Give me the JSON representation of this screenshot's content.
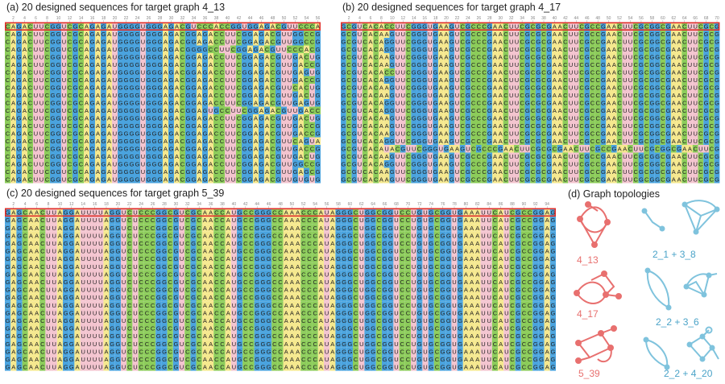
{
  "panels": [
    {
      "id": "a",
      "title": "(a) 20 designed sequences for target graph 4_13",
      "rows": [
        "CAGACUUCGGUCGCAGAGAUGGGGUGGGAGACGUCCCACCGGUGGAGACGUUCCCACG",
        "CAGACUUCGGUCGCAGAGAUGGGGUGGGAGACGGAGACCUUCGGAGACGUUGGCCG",
        "CAGACUUCGGUCGCAGAGAUGGGGUGGGAGACGGAGACCUUCGGAGACGUUGGCCG",
        "CAGACUUCGGUCGCAGAGAUGGGGUGGGAGACGGGGCCUUCGGAGACGUUCCCACG",
        "CAGACUUCGGUCGCAGAGAUGGGGUGGGAGACGGAGACCUUCGGAGACGUUGACUG",
        "CAGACUUCGGUCGCAGAGAUGGGGUGGGAGACGGAGACCUUCGGAGACGUUGACCG",
        "CAGACUUCGGUCGCAGAGAUGGGGUGGGAGACGGAGACCUUCGGAGACGUUGAGUG",
        "CAGACUUCGGUCGCAGAGAUGGGGUGGGAGACGGAGACCUUCGGAGACGUUGACCG",
        "CAGACUUCGGUCGCAGAGAUGGGGUGGGAGACGGAGACCUUCGGAGACGUUCACUG",
        "CAGACUUCGGUCGCAGAGAUGGGGUGGGAGACGGAGACCUUCGGAGACGUUGACUG",
        "CAGACUUCGGUCGCAGAGAUGGGGUGGGAGACGGAGACCUUCGGAGACGUUGAGUG",
        "CAGACUUCGGUCGCAGAGAUGGGGUGGGAGACGGAGUGCCUUCGGAGACGUUGACCG",
        "CAGACUUCGGUCGCAGAGAUGGGGUGGGAGACGGAGACCUUCGGAGACGUUGACUG",
        "CAGACUUCGGUCGCAGAGAUGGGGUGGGAGACGGAGACCUUCGGAGACGUUGACCG",
        "CAGACUUCGGUCGCAGAGAUGGGGUGGGAGACGGAGACCUUCGGAGACGUUGACCG",
        "CAGACUUCGGUCGCAGAGAUGGGGUGGGAGACGGAGACCUUCGGAGACGUUCAGUA",
        "CAGACUUCGGUCGCAGAGAUGGGGUGGGAGACGGAGACCUUCGGAGACGUUGACCG",
        "CAGACUUCGGUCGCAGAGAUGGGGUGGGAGACGGAGACCUUCGGAGACGUUGACUG",
        "CAGACUUCGGUCGCAGAGAUGGGGUGGGAGACGGAGACCUUCGGAGACGUUGGCCG",
        "CAGACUUCGGUCGCAGAGAUGGGGUGGGAGACGGAGACCUUCGGAGACGUUGAGCG",
        "CAGACUUCGGUCGCAGAGAUGGGGUGGGAGACGGAGACCUUCGGAGACGUUGUGUG"
      ]
    },
    {
      "id": "b",
      "title": "(b) 20 designed sequences for target graph 4_17",
      "rows": [
        "GCGUCACACCUUCGGGUGAAGUCGCCCGAACUUCGCGCGAACUUCGCCGAACUUCGCGGCGAACUUCGCG",
        "GCGUCACAAGUUCGGGUGAAGUCGCCCGAACUUCGCGCGAACUUCGCCGAACUUCGCGGCGAACUUCGCG",
        "GCGUCACAGGUUCGGGUGAAGUCGCCCGAACUUCGCGCGAACUUCGCCGAACUUCGCGGCGAACUUCGCG",
        "GCGUCACAGGUUCGGGUGAAGUCGCCCGAACUUCGCGCGAACUUCGCCGAACUUCGCGGCGAACUUCGCG",
        "GCGUCACAAGUUCGGGUGAAGUCGCCCGAACUUCGCGCGAACUUCGCCGAACUUCGCGGCGAACUUCGCG",
        "GCGUCACAAGUUCGGGUGAAGUCGCCCGAACUUCGCGCGAACUUCGCCGAACUUCGCGGCGAACUUCGCG",
        "GCGUCACACCUUCGGGUGAAGUCGCCCGAACUUCGCGCGAACUUCGCCGAACUUCGCGGCGAACUUCGCG",
        "GCGUCACAGGUUCGGGUGAAGUCGCCCGAACUUCGCGCGAACUUCGCCGAACUUCGCGGCGAACUUCGCG",
        "GCGUCACAAGUUCGGGUGAAGUCGCCCGAACUUCGCGCGAACUUCGCCGAACUUCGCGGCGAACUUCGCG",
        "GCGUCACAAGUUCGGGUGAAGUCGCCCGAACUUCGCGCGAACUUCGCCGAACUUCGCGGCGAACUUCGCG",
        "GCGUCACAGGUUCGGGUGAAGUCGCCCGAACUUCGCGCGAACUUCGCCGAACUUCGCGGCGAACUUCGCG",
        "GCGUCACAGGUUCGGGUGAAGUCGCCCGAACUUCGCGCGAACUUCGCCGAACUUCGCGGCGAACUUCGCG",
        "GCGUCACAAGUUCGGGUGAAGUCGCCCGAACUUCGCGCGAACUUCGCCGAACUUCGCGGCGAACUUCGCG",
        "GCGUCACAAGUUCGGGUGAAGUCGCCCGAACUUCGCGCGAACUUCGCCGAACUUCGCGGCGAACUUCGCG",
        "GCGUCACAAGUUCGGGUGAAGUCGCCCGAACUUCGCGCGAACUUCGCCGAACUUCGCGGCGAACUUCGCG",
        "GCGUCACAGGUUCGGGUGAAGUCGCCCGAACUUCGCGCGAACUUCGCCGAACUUCGCGGCGAACUUCGCG",
        "GCGUCACAUACGUUCGGGUGAAGUCGCCCGAACUUCGCGCGAACUUCGCCGAACUUCGCGGCGAACUUCG",
        "GCGUCACAAGUUCGGGUGAAGUCGCCCGAACUUCGCGCGAACUUCGCCGAACUUCGCGGCGAACUUCGCG",
        "GCGUCACAGGUUCGGGUGAAGUCGCCCGAACUUCGCGCGAACUUCGCCGAACUUCGCGGCGAACUUCGCG",
        "GCGUCACAAGUUCGGGUGAAGUCGCCCGAACUUCGCGCGAACUUCGCCGAACUUCGCGGCGAACUUCGCG",
        "GCGUCACAAGUUCGGGUGAAGUCGCCCGAACUUCGCGCGAACUUCGCCGAACUUCGCGGCGAACUUCGCG"
      ]
    },
    {
      "id": "c",
      "title": "(c) 20 designed sequences for target graph 5_39",
      "rows": [
        "GAGCAACUUAGGAUUUUAGGUCUCCCGGCGUCGCAACCAUGCCGGGCCAAACCCAUAGGGCUGGCGGUCCUGUGCGGUGAAAUUCAUCGCCGGAG",
        "GAGCAACUUAGGAUUUUAGGUCUCCCGGCGUCGCAACCAUGCCGGGCCAAACCCAUAGGGCUGGCGGUCCUGUGCGGUGAAAUUCAUCGCCGGAG",
        "GAGCAACUUAGGAUUUUAGGUCUCCCGGCGUCGCAACCAUGCCGGGCCAAACCCAUAGGGCUGGCGGUCCUGUGCGGUGAAAUUCAUCGCCGGAG",
        "GAGCAACUUAGGAUUUUAGGUCUCCCGGCGUCGCAACCAUGCCGGGCCAAACCCAUAGGGCUGGCGGUCCUGUGCGGUGAAAUUCAUCGCCGGAG",
        "GAGCAACUUAGGAUUUUAGGUCUCCCGGCGUCGCAACCAUGCCGGGCCAAACCCAUAGGGCUGGCGGUCCUGUGCGGUGAAAUUCAUCGCCGGAG",
        "GAGCAACUUAGGAUUUUAGGUCUCCCGGCGUCGCAACCAUGCCGGGCCAAACCCAUAGGGCUGGCGGUCCUGUGCGGUGAAAUUCAUCGCCGGAG",
        "GAGCAACUUAGGAUUUUAGGUCUCCCGGCGUCGCAACCAUGCCGGGCCAAACCCAUAGGGCUGGCGGUCCUGUGCGGUGAAAUUCAUCGCCGGAG",
        "GAGCAACUUAGGAUUUUAGGUCUCCCGGCGUCGCAACCAUGCCGGGCCAAACCCAUAGGGCUGGCGGUCCUGUGCGGUGAAAUUCAUCGCCGGAG",
        "GAGCAACUUAGGAUUUUAGGUCUCCCGGCGUCGCAACCAUGCCGGGCCAAACCCAUAGGGCUGGCGGUCCUGUGCGGUGAAAUUCAUCGCCGGAG",
        "GAGCAACUUAGGAUUUUAGGUCUCCCGGCGUCGCAACCAUGCCGGGCCAAACCCAUAGGGCUGGCGGUCCUGUGCGGUGAAAUUCAUCGCCGGAG",
        "GAGCAACUUAGGAUUUUAGGUCUCCCGGCGUCGCAACCAUGCCGGGCCAAACCCAUAGGGCUGGCGGUCCUGUGCGGUGAAAUUCAUCGCCGGAG",
        "GAGCAACUUAGGAUUUUAGGUCUCCCGGCGUCGCAACCAUGCCGGGCCAAACCCAUAGGGCUGGCGGUCCUGUGCGGUGAAAUUCAUCGCCGGAG",
        "GAGCAACUUAGGAUUUUAGGUCUCCCGGCGUCGCAACCAUGCCGGGCCAAACCCAUAGGGCUGGCGGUCCUGUGCGGUGAAAUUCAUCGCCGGAG",
        "GAGCAACUUAGGAUUUUAGGUCUCCCGGCGUCGCAACCAUGCCGGGCCAAACCCAUAGGGCUGGCGGUCCUGUGCGGUGAAAUUCAUCGCCGGAG",
        "GAGCAACUUAGGAUUUUAGGUCUCCCGGCGUCGCAACCAUGCCGGGCCAAACCCAUAGGGCUGGCGGUCCUGUGCGGUGAAAUUCAUCGCCGGAG",
        "GAGCAACUUAGGAUUUUAGGUCUCCCGGCGUCGCAACCAUGCCGGGCCAAACCCAUAGGGCUGGCGGUCCUGUGCGGUGAAAUUCAUCGCCGGAG",
        "GAGCAACUUAGGAUUUUAGGUCUCCCGGCGUCGCAACCAUGCCGGGCCAAACCCAUAGGGCUGGCGGUCCUGUGCGGUGAAAUUCAUCGCCGGAG",
        "GAGCAACUUAGGAUUUUAGGUCUCCCGGCGUCGCAACCAUGCCGGGCCAAACCCAUAGGGCUGGCGGUCCUGUGCGGUGAAAUUCAUCGCCGGAG",
        "GAGCAACUUAGGAUUUUAGGUCUCCCGGCGUCGCAACCAUGCCGGGCCAAACCCAUAGGGCUGGCGGUCCUGUGCGGUGAAAUUCAUCGCCGGAG",
        "GAGCAACUUAGGAUUUUAGGUCUCCCGGCGUCGCAACCAUGCCGGGCCAAACCCAUAGGGCUGGCGGUCCUGUGCGGUGAAAUUCAUCGCCGGAG",
        "GAGCAACUUAGGAUUUUAGGUCUCCCGGCGUCGCAACCAUGCCGGGCCAAACCCAUAGGGCUGGCGGUCCUGUGCGGUGAAAUUCAUCGCCGGAG"
      ]
    }
  ],
  "ruler_labels": {
    "a": [
      "2",
      "4",
      "6",
      "8",
      "10",
      "12",
      "14",
      "16",
      "18",
      "20",
      "22",
      "24",
      "26",
      "28",
      "30",
      "32",
      "34",
      "36",
      "38",
      "40",
      "42",
      "44",
      "46",
      "48",
      "50",
      "52",
      "54",
      "56"
    ],
    "b": [
      "2",
      "4",
      "6",
      "8",
      "10",
      "12",
      "14",
      "16",
      "18",
      "20",
      "22",
      "24",
      "26",
      "28",
      "30",
      "32",
      "34",
      "36",
      "38",
      "40",
      "42",
      "44",
      "46",
      "48",
      "50",
      "52",
      "54",
      "56",
      "58",
      "60",
      "62",
      "64",
      "66",
      "68",
      "70"
    ],
    "c": [
      "2",
      "4",
      "6",
      "8",
      "10",
      "12",
      "14",
      "16",
      "18",
      "20",
      "22",
      "24",
      "26",
      "28",
      "30",
      "32",
      "34",
      "36",
      "38",
      "40",
      "42",
      "44",
      "46",
      "48",
      "50",
      "52",
      "54",
      "56",
      "58",
      "60",
      "62",
      "64",
      "66",
      "68",
      "70",
      "72",
      "74",
      "76",
      "78",
      "80",
      "82",
      "84",
      "86",
      "88",
      "90",
      "92",
      "94"
    ]
  },
  "nucleotide_colors": {
    "A": "#f5e88e",
    "U": "#f3c4cf",
    "G": "#4aa3de",
    "C": "#8ccc5a"
  },
  "highlight_color": "#e0302b",
  "topologies": {
    "title": "(d) Graph topologies",
    "target_color": "#e8706f",
    "pair_color": "#7fc3dd",
    "labels": {
      "t1": "4_13",
      "t2": "4_17",
      "t3": "5_39",
      "p1": "2_1 + 3_8",
      "p2": "2_2 + 3_6",
      "p3": "2_2 + 4_20"
    }
  }
}
